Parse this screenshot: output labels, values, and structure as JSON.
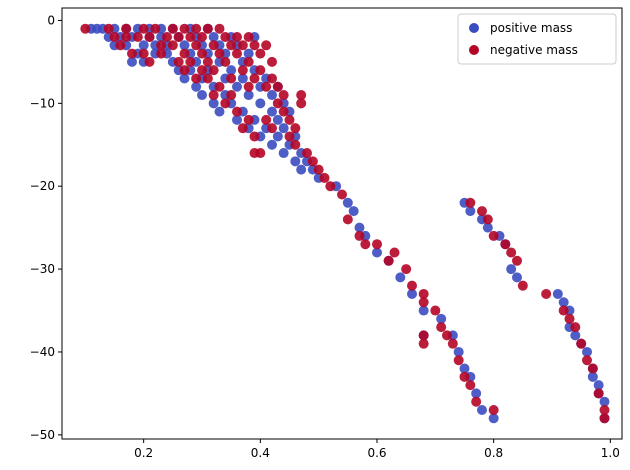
{
  "chart_data": {
    "type": "scatter",
    "title": "",
    "xlabel": "",
    "ylabel": "",
    "xlim": [
      0.06,
      1.02
    ],
    "ylim": [
      -50.5,
      1.5
    ],
    "xticks": [
      0.2,
      0.4,
      0.6,
      0.8,
      1.0
    ],
    "xtick_labels": [
      "0.2",
      "0.4",
      "0.6",
      "0.8",
      "1.0"
    ],
    "yticks": [
      0,
      -10,
      -20,
      -30,
      -40,
      -50
    ],
    "ytick_labels": [
      "0",
      "−10",
      "−20",
      "−30",
      "−40",
      "−50"
    ],
    "grid": false,
    "legend_position": "top-right",
    "series": [
      {
        "name": "positive mass",
        "color": "#3b4cc0",
        "points": [
          [
            0.11,
            -1
          ],
          [
            0.12,
            -1
          ],
          [
            0.13,
            -1
          ],
          [
            0.14,
            -2
          ],
          [
            0.15,
            -1
          ],
          [
            0.15,
            -3
          ],
          [
            0.16,
            -2
          ],
          [
            0.17,
            -1
          ],
          [
            0.17,
            -3
          ],
          [
            0.18,
            -2
          ],
          [
            0.18,
            -5
          ],
          [
            0.19,
            -1
          ],
          [
            0.19,
            -4
          ],
          [
            0.2,
            -3
          ],
          [
            0.2,
            -5
          ],
          [
            0.21,
            -2
          ],
          [
            0.21,
            -1
          ],
          [
            0.22,
            -3
          ],
          [
            0.22,
            -4
          ],
          [
            0.23,
            -1
          ],
          [
            0.23,
            -2
          ],
          [
            0.24,
            -3
          ],
          [
            0.24,
            -4
          ],
          [
            0.25,
            -1
          ],
          [
            0.25,
            -5
          ],
          [
            0.26,
            -2
          ],
          [
            0.26,
            -6
          ],
          [
            0.27,
            -3
          ],
          [
            0.27,
            -7
          ],
          [
            0.28,
            -1
          ],
          [
            0.28,
            -4
          ],
          [
            0.28,
            -6
          ],
          [
            0.29,
            -2
          ],
          [
            0.29,
            -5
          ],
          [
            0.29,
            -8
          ],
          [
            0.3,
            -3
          ],
          [
            0.3,
            -7
          ],
          [
            0.3,
            -9
          ],
          [
            0.31,
            -1
          ],
          [
            0.31,
            -4
          ],
          [
            0.31,
            -6
          ],
          [
            0.32,
            -2
          ],
          [
            0.32,
            -8
          ],
          [
            0.32,
            -10
          ],
          [
            0.33,
            -3
          ],
          [
            0.33,
            -5
          ],
          [
            0.33,
            -11
          ],
          [
            0.34,
            -4
          ],
          [
            0.34,
            -7
          ],
          [
            0.34,
            -9
          ],
          [
            0.35,
            -2
          ],
          [
            0.35,
            -6
          ],
          [
            0.35,
            -10
          ],
          [
            0.36,
            -3
          ],
          [
            0.36,
            -8
          ],
          [
            0.36,
            -12
          ],
          [
            0.37,
            -5
          ],
          [
            0.37,
            -7
          ],
          [
            0.37,
            -11
          ],
          [
            0.38,
            -4
          ],
          [
            0.38,
            -9
          ],
          [
            0.38,
            -13
          ],
          [
            0.39,
            -2
          ],
          [
            0.39,
            -6
          ],
          [
            0.39,
            -12
          ],
          [
            0.4,
            -8
          ],
          [
            0.4,
            -10
          ],
          [
            0.4,
            -14
          ],
          [
            0.41,
            -7
          ],
          [
            0.41,
            -13
          ],
          [
            0.42,
            -9
          ],
          [
            0.42,
            -11
          ],
          [
            0.42,
            -15
          ],
          [
            0.43,
            -8
          ],
          [
            0.43,
            -14
          ],
          [
            0.43,
            -12
          ],
          [
            0.44,
            -10
          ],
          [
            0.44,
            -16
          ],
          [
            0.44,
            -13
          ],
          [
            0.45,
            -11
          ],
          [
            0.45,
            -15
          ],
          [
            0.46,
            -14
          ],
          [
            0.46,
            -17
          ],
          [
            0.47,
            -16
          ],
          [
            0.47,
            -18
          ],
          [
            0.48,
            -17
          ],
          [
            0.49,
            -18
          ],
          [
            0.5,
            -19
          ],
          [
            0.53,
            -20
          ],
          [
            0.55,
            -22
          ],
          [
            0.56,
            -23
          ],
          [
            0.57,
            -25
          ],
          [
            0.58,
            -26
          ],
          [
            0.6,
            -28
          ],
          [
            0.62,
            -29
          ],
          [
            0.64,
            -31
          ],
          [
            0.66,
            -33
          ],
          [
            0.68,
            -35
          ],
          [
            0.68,
            -38
          ],
          [
            0.71,
            -36
          ],
          [
            0.73,
            -38
          ],
          [
            0.74,
            -40
          ],
          [
            0.75,
            -42
          ],
          [
            0.76,
            -43
          ],
          [
            0.77,
            -45
          ],
          [
            0.78,
            -47
          ],
          [
            0.8,
            -48
          ],
          [
            0.75,
            -22
          ],
          [
            0.76,
            -23
          ],
          [
            0.78,
            -24
          ],
          [
            0.79,
            -25
          ],
          [
            0.81,
            -26
          ],
          [
            0.82,
            -27
          ],
          [
            0.83,
            -30
          ],
          [
            0.84,
            -31
          ],
          [
            0.91,
            -33
          ],
          [
            0.92,
            -34
          ],
          [
            0.93,
            -35
          ],
          [
            0.93,
            -37
          ],
          [
            0.94,
            -38
          ],
          [
            0.95,
            -39
          ],
          [
            0.96,
            -40
          ],
          [
            0.97,
            -42
          ],
          [
            0.97,
            -43
          ],
          [
            0.98,
            -44
          ],
          [
            0.98,
            -45
          ],
          [
            0.99,
            -46
          ],
          [
            0.99,
            -48
          ]
        ]
      },
      {
        "name": "negative mass",
        "color": "#b40426",
        "points": [
          [
            0.1,
            -1
          ],
          [
            0.14,
            -1
          ],
          [
            0.15,
            -2
          ],
          [
            0.16,
            -3
          ],
          [
            0.17,
            -2
          ],
          [
            0.17,
            -1
          ],
          [
            0.18,
            -4
          ],
          [
            0.19,
            -2
          ],
          [
            0.2,
            -1
          ],
          [
            0.2,
            -4
          ],
          [
            0.21,
            -2
          ],
          [
            0.21,
            -5
          ],
          [
            0.22,
            -1
          ],
          [
            0.23,
            -3
          ],
          [
            0.23,
            -4
          ],
          [
            0.24,
            -2
          ],
          [
            0.25,
            -1
          ],
          [
            0.25,
            -3
          ],
          [
            0.26,
            -2
          ],
          [
            0.26,
            -5
          ],
          [
            0.27,
            -1
          ],
          [
            0.27,
            -4
          ],
          [
            0.27,
            -6
          ],
          [
            0.28,
            -2
          ],
          [
            0.28,
            -5
          ],
          [
            0.29,
            -1
          ],
          [
            0.29,
            -3
          ],
          [
            0.29,
            -7
          ],
          [
            0.3,
            -2
          ],
          [
            0.3,
            -4
          ],
          [
            0.3,
            -6
          ],
          [
            0.31,
            -1
          ],
          [
            0.31,
            -5
          ],
          [
            0.31,
            -7
          ],
          [
            0.32,
            -3
          ],
          [
            0.32,
            -6
          ],
          [
            0.32,
            -9
          ],
          [
            0.33,
            -1
          ],
          [
            0.33,
            -4
          ],
          [
            0.33,
            -8
          ],
          [
            0.34,
            -2
          ],
          [
            0.34,
            -5
          ],
          [
            0.34,
            -10
          ],
          [
            0.35,
            -3
          ],
          [
            0.35,
            -7
          ],
          [
            0.35,
            -9
          ],
          [
            0.36,
            -2
          ],
          [
            0.36,
            -4
          ],
          [
            0.36,
            -11
          ],
          [
            0.37,
            -3
          ],
          [
            0.37,
            -6
          ],
          [
            0.37,
            -13
          ],
          [
            0.38,
            -2
          ],
          [
            0.38,
            -5
          ],
          [
            0.38,
            -8
          ],
          [
            0.38,
            -12
          ],
          [
            0.39,
            -3
          ],
          [
            0.39,
            -7
          ],
          [
            0.39,
            -14
          ],
          [
            0.39,
            -16
          ],
          [
            0.4,
            -4
          ],
          [
            0.4,
            -6
          ],
          [
            0.4,
            -16
          ],
          [
            0.41,
            -3
          ],
          [
            0.41,
            -8
          ],
          [
            0.41,
            -12
          ],
          [
            0.42,
            -5
          ],
          [
            0.42,
            -7
          ],
          [
            0.42,
            -13
          ],
          [
            0.43,
            -8
          ],
          [
            0.43,
            -10
          ],
          [
            0.44,
            -9
          ],
          [
            0.44,
            -11
          ],
          [
            0.45,
            -12
          ],
          [
            0.45,
            -14
          ],
          [
            0.46,
            -13
          ],
          [
            0.46,
            -15
          ],
          [
            0.47,
            -9
          ],
          [
            0.47,
            -10
          ],
          [
            0.48,
            -16
          ],
          [
            0.49,
            -17
          ],
          [
            0.5,
            -18
          ],
          [
            0.51,
            -19
          ],
          [
            0.52,
            -20
          ],
          [
            0.54,
            -21
          ],
          [
            0.55,
            -24
          ],
          [
            0.57,
            -26
          ],
          [
            0.58,
            -27
          ],
          [
            0.6,
            -27
          ],
          [
            0.62,
            -29
          ],
          [
            0.63,
            -28
          ],
          [
            0.65,
            -30
          ],
          [
            0.66,
            -32
          ],
          [
            0.68,
            -33
          ],
          [
            0.68,
            -34
          ],
          [
            0.68,
            -38
          ],
          [
            0.68,
            -39
          ],
          [
            0.7,
            -35
          ],
          [
            0.71,
            -37
          ],
          [
            0.72,
            -38
          ],
          [
            0.73,
            -39
          ],
          [
            0.74,
            -41
          ],
          [
            0.75,
            -43
          ],
          [
            0.76,
            -44
          ],
          [
            0.77,
            -46
          ],
          [
            0.8,
            -47
          ],
          [
            0.76,
            -22
          ],
          [
            0.78,
            -23
          ],
          [
            0.79,
            -24
          ],
          [
            0.8,
            -26
          ],
          [
            0.82,
            -27
          ],
          [
            0.83,
            -28
          ],
          [
            0.84,
            -29
          ],
          [
            0.85,
            -32
          ],
          [
            0.89,
            -33
          ],
          [
            0.92,
            -35
          ],
          [
            0.93,
            -36
          ],
          [
            0.94,
            -37
          ],
          [
            0.95,
            -39
          ],
          [
            0.96,
            -41
          ],
          [
            0.97,
            -42
          ],
          [
            0.98,
            -45
          ],
          [
            0.99,
            -47
          ],
          [
            0.99,
            -48
          ]
        ]
      }
    ]
  }
}
